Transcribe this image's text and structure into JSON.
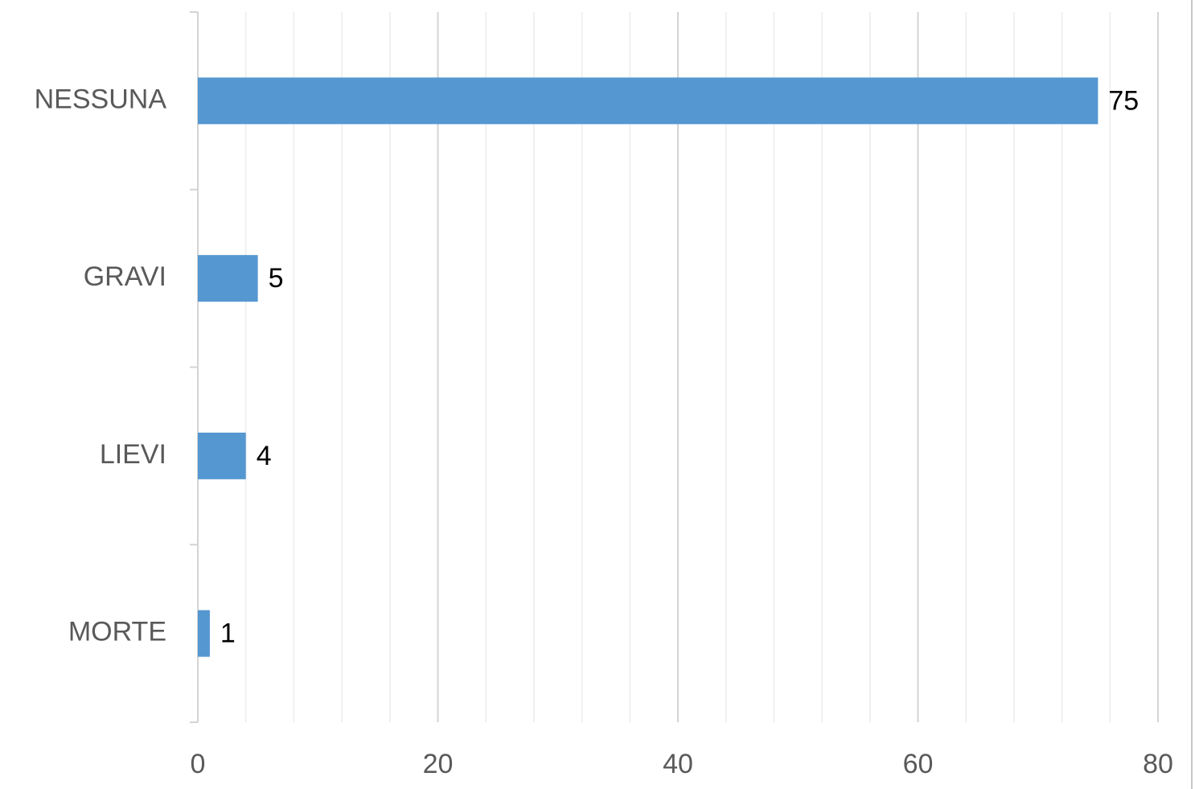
{
  "chart_data": {
    "type": "hbar",
    "categories": [
      "NESSUNA",
      "GRAVI",
      "LIEVI",
      "MORTE"
    ],
    "values": [
      75,
      5,
      4,
      1
    ],
    "color": "#5597d0",
    "xlim": [
      0,
      80
    ],
    "xticks": [
      0,
      20,
      40,
      60,
      80
    ],
    "x_minor_ticks": [
      4,
      8,
      12,
      16,
      24,
      28,
      32,
      36,
      44,
      48,
      52,
      56,
      64,
      68,
      72,
      76
    ],
    "grid": true
  }
}
